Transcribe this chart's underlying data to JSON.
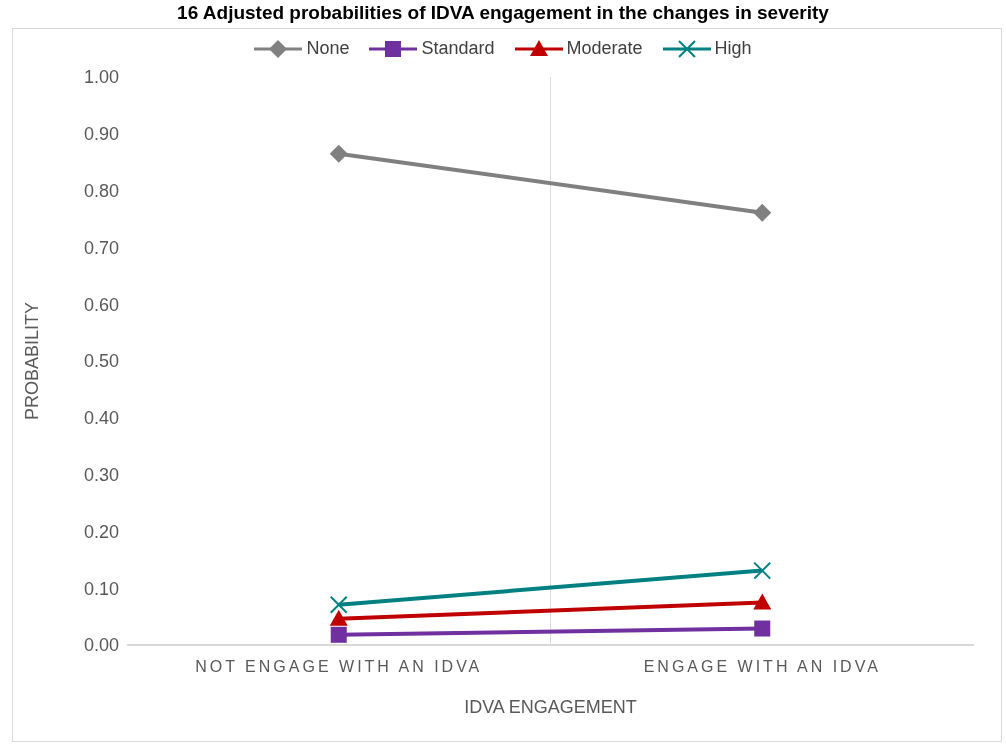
{
  "chart_data": {
    "type": "line",
    "title": "16 Adjusted probabilities of IDVA engagement in the changes in severity",
    "xlabel": "IDVA ENGAGEMENT",
    "ylabel": "PROBABILITY",
    "categories": [
      "NOT ENGAGE WITH AN IDVA",
      "ENGAGE WITH AN IDVA"
    ],
    "ylim": [
      0,
      1
    ],
    "yticks": [
      {
        "value": 0,
        "label": "0.00"
      },
      {
        "value": 0.1,
        "label": "0.10"
      },
      {
        "value": 0.2,
        "label": "0.20"
      },
      {
        "value": 0.3,
        "label": "0.30"
      },
      {
        "value": 0.4,
        "label": "0.40"
      },
      {
        "value": 0.5,
        "label": "0.50"
      },
      {
        "value": 0.6,
        "label": "0.60"
      },
      {
        "value": 0.7,
        "label": "0.70"
      },
      {
        "value": 0.8,
        "label": "0.80"
      },
      {
        "value": 0.9,
        "label": "0.90"
      },
      {
        "value": 1,
        "label": "1.00"
      }
    ],
    "grid": "x",
    "legend": "top",
    "line_style": "solid",
    "series": [
      {
        "name": "None",
        "color": "#808080",
        "marker": "diamond",
        "values": [
          0.865,
          0.761
        ]
      },
      {
        "name": "Standard",
        "color": "#7030a0",
        "marker": "square",
        "values": [
          0.018,
          0.029
        ]
      },
      {
        "name": "Moderate",
        "color": "#c00000",
        "marker": "triangle",
        "values": [
          0.046,
          0.075
        ]
      },
      {
        "name": "High",
        "color": "#008080",
        "marker": "cross",
        "values": [
          0.071,
          0.131
        ]
      }
    ]
  }
}
